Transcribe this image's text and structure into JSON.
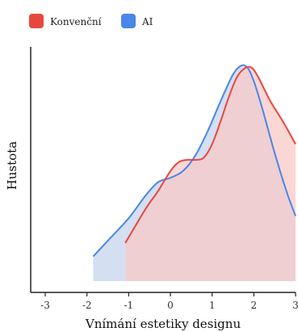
{
  "chart_data": {
    "type": "area",
    "title": "",
    "xlabel": "Vnímání estetiky designu",
    "ylabel": "Hustota",
    "xlim": [
      -3.2,
      3.0
    ],
    "ylim": [
      0,
      1.0
    ],
    "xticks": [
      -3,
      -2,
      -1,
      0,
      1,
      2,
      3
    ],
    "xtick_labels": [
      "-3",
      "-2",
      "-1",
      "0",
      "1",
      "2",
      "3"
    ],
    "legend_position": "top-left",
    "series": [
      {
        "name": "Konvenční",
        "color": "#e8473d",
        "fill": "#f8c9c7",
        "x": [
          -1.08,
          -0.6,
          -0.3,
          0.0,
          0.2,
          0.4,
          0.6,
          0.8,
          1.0,
          1.2,
          1.4,
          1.6,
          1.8,
          1.95,
          2.1,
          2.4,
          2.7,
          3.0
        ],
        "y": [
          0.17,
          0.32,
          0.4,
          0.49,
          0.53,
          0.54,
          0.54,
          0.55,
          0.61,
          0.71,
          0.82,
          0.91,
          0.95,
          0.95,
          0.91,
          0.8,
          0.71,
          0.61
        ]
      },
      {
        "name": "AI",
        "color": "#4a86e8",
        "fill": "#cdd9ef",
        "x": [
          -1.85,
          -1.5,
          -1.0,
          -0.6,
          -0.3,
          0.0,
          0.3,
          0.6,
          0.9,
          1.2,
          1.5,
          1.7,
          1.85,
          2.0,
          2.2,
          2.5,
          2.8,
          3.0
        ],
        "y": [
          0.11,
          0.18,
          0.28,
          0.38,
          0.44,
          0.46,
          0.49,
          0.56,
          0.67,
          0.8,
          0.92,
          0.96,
          0.95,
          0.89,
          0.77,
          0.57,
          0.39,
          0.29
        ]
      }
    ]
  }
}
